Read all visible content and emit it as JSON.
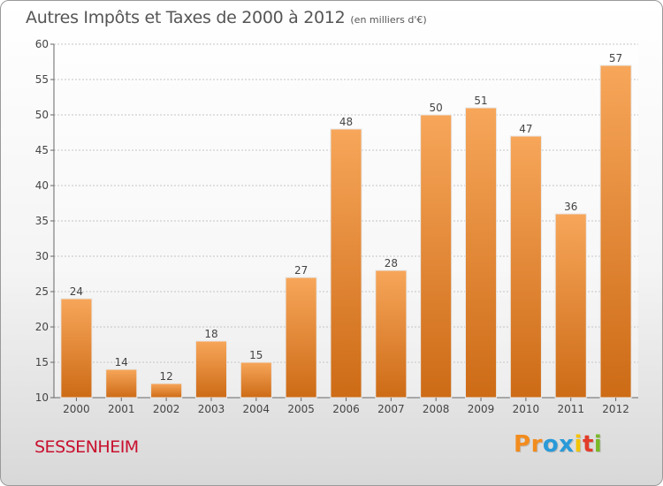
{
  "chart_data": {
    "type": "bar",
    "title": "Autres Impôts et Taxes de 2000 à 2012",
    "unit_label": "(en milliers d'€)",
    "categories": [
      "2000",
      "2001",
      "2002",
      "2003",
      "2004",
      "2005",
      "2006",
      "2007",
      "2008",
      "2009",
      "2010",
      "2011",
      "2012"
    ],
    "values": [
      24,
      14,
      12,
      18,
      15,
      27,
      48,
      28,
      50,
      51,
      47,
      36,
      57
    ],
    "ylim": [
      10,
      60
    ],
    "yticks": [
      10,
      15,
      20,
      25,
      30,
      35,
      40,
      45,
      50,
      55,
      60
    ],
    "grid": true,
    "xlabel": "",
    "ylabel": "",
    "bar_color_top": "#f7a65a",
    "bar_color_bottom": "#cd6b16"
  },
  "commune": "SESSENHEIM",
  "logo": {
    "letters": [
      "P",
      "r",
      "o",
      "x",
      "i",
      "t",
      "i"
    ],
    "colors": [
      "#f28c1e",
      "#f28c1e",
      "#2a9ad8",
      "#2a9ad8",
      "#f5c400",
      "#e23c2a",
      "#7ab829"
    ]
  }
}
